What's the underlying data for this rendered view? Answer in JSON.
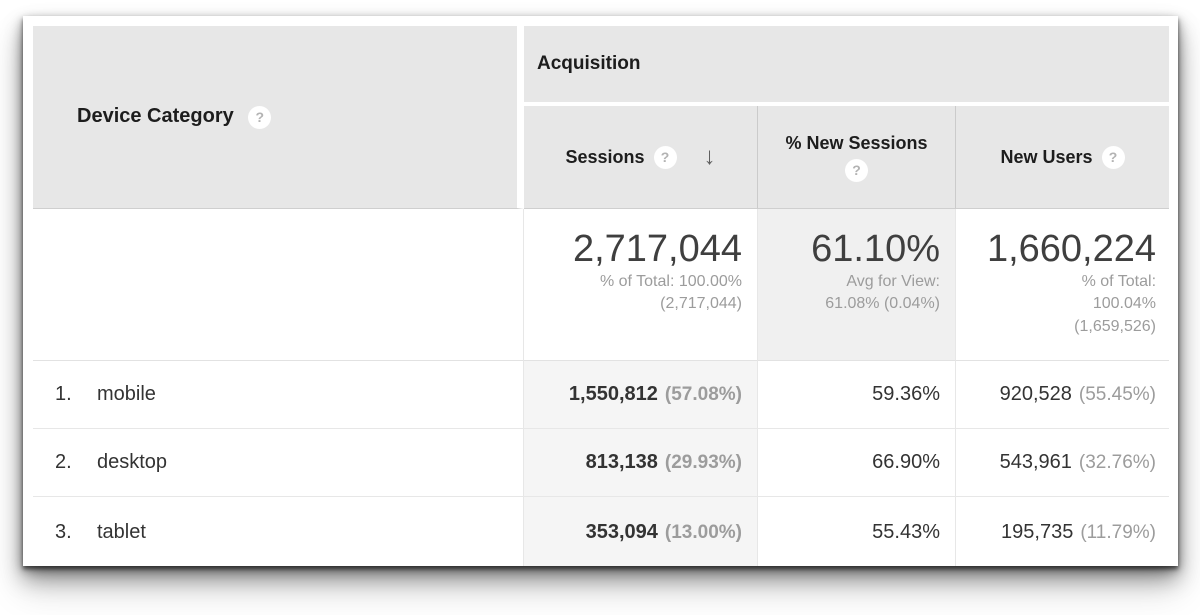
{
  "header": {
    "dimension": "Device Category",
    "group": "Acquisition",
    "metrics": [
      "Sessions",
      "% New Sessions",
      "New Users"
    ]
  },
  "icons": {
    "help": "?",
    "sort_desc": "↓"
  },
  "summary": {
    "sessions": {
      "value": "2,717,044",
      "line1": "% of Total: 100.00%",
      "line2": "(2,717,044)"
    },
    "percent_new_sessions": {
      "value": "61.10%",
      "line1": "Avg for View:",
      "line2": "61.08% (0.04%)"
    },
    "new_users": {
      "value": "1,660,224",
      "line1": "% of Total:",
      "line2": "100.04%",
      "line3": "(1,659,526)"
    }
  },
  "rows": [
    {
      "index": "1.",
      "name": "mobile",
      "sessions": "1,550,812",
      "sessions_share": "(57.08%)",
      "pct_new_sessions": "59.36%",
      "new_users": "920,528",
      "new_users_share": "(55.45%)"
    },
    {
      "index": "2.",
      "name": "desktop",
      "sessions": "813,138",
      "sessions_share": "(29.93%)",
      "pct_new_sessions": "66.90%",
      "new_users": "543,961",
      "new_users_share": "(32.76%)"
    },
    {
      "index": "3.",
      "name": "tablet",
      "sessions": "353,094",
      "sessions_share": "(13.00%)",
      "pct_new_sessions": "55.43%",
      "new_users": "195,735",
      "new_users_share": "(11.79%)"
    }
  ],
  "colors": {
    "header_bg": "#e7e7e7",
    "sorted_column_bg": "#f5f5f5",
    "avg_summary_bg": "#f0f0f0",
    "text_primary": "#333333",
    "text_muted": "#9c9c9c"
  }
}
